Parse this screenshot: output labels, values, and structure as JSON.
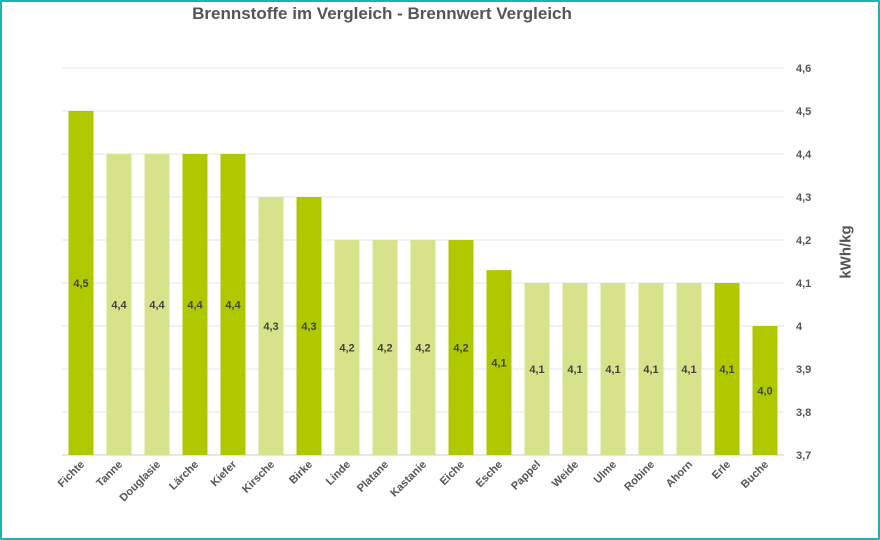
{
  "chart_data": {
    "type": "bar",
    "title": "Brennstoffe im Vergleich - Brennwert Vergleich",
    "ylabel": "kWh/kg",
    "xlabel": "",
    "ylim": [
      3.7,
      4.6
    ],
    "yticks": [
      "3,7",
      "3,8",
      "3,9",
      "4",
      "4,1",
      "4,2",
      "4,3",
      "4,4",
      "4,5",
      "4,6"
    ],
    "grid": true,
    "y_axis_side": "right",
    "categories": [
      "Fichte",
      "Tanne",
      "Douglasie",
      "Lärche",
      "Kiefer",
      "Kirsche",
      "Birke",
      "Linde",
      "Platane",
      "Kastanie",
      "Eiche",
      "Esche",
      "Pappel",
      "Weide",
      "Ulme",
      "Robine",
      "Ahorn",
      "Erle",
      "Buche"
    ],
    "values": [
      4.5,
      4.4,
      4.4,
      4.4,
      4.4,
      4.3,
      4.3,
      4.2,
      4.2,
      4.2,
      4.2,
      4.13,
      4.1,
      4.1,
      4.1,
      4.1,
      4.1,
      4.1,
      4.0
    ],
    "data_labels": [
      "4,5",
      "4,4",
      "4,4",
      "4,4",
      "4,4",
      "4,3",
      "4,3",
      "4,2",
      "4,2",
      "4,2",
      "4,2",
      "4,1",
      "4,1",
      "4,1",
      "4,1",
      "4,1",
      "4,1",
      "4,1",
      "4,0"
    ],
    "highlight": [
      true,
      false,
      false,
      true,
      true,
      false,
      true,
      false,
      false,
      false,
      true,
      true,
      false,
      false,
      false,
      false,
      false,
      true,
      true
    ],
    "colors": {
      "highlight": "#b0c800",
      "normal": "#d6e38a",
      "frame": "#1bb3b4"
    }
  }
}
